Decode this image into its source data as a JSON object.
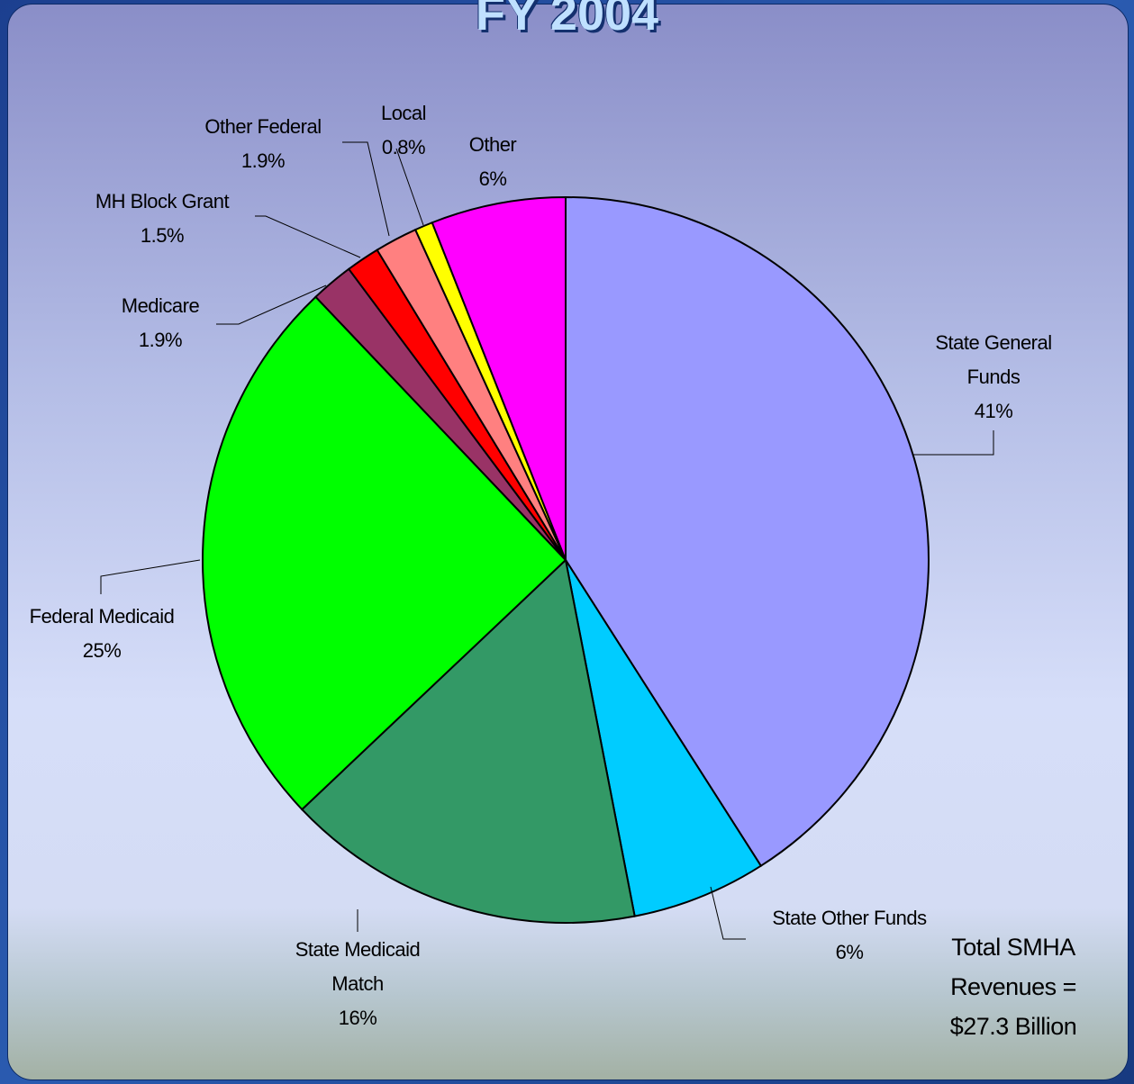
{
  "chart_data": {
    "type": "pie",
    "title": "FY 2004",
    "categories": [
      "State General Funds",
      "State Other Funds",
      "State Medicaid Match",
      "Federal Medicaid",
      "Medicare",
      "MH Block Grant",
      "Other Federal",
      "Local",
      "Other"
    ],
    "values": [
      41,
      6,
      16,
      25,
      1.9,
      1.5,
      1.9,
      0.8,
      6
    ],
    "value_labels": [
      "41%",
      "6%",
      "16%",
      "25%",
      "1.9%",
      "1.5%",
      "1.9%",
      "0.8%",
      "6%"
    ],
    "colors": [
      "#9999ff",
      "#00ccff",
      "#339966",
      "#00ff00",
      "#993366",
      "#ff0000",
      "#ff8080",
      "#ffff00",
      "#ff00ff"
    ],
    "annotation": "Total SMHA Revenues = $27.3 Billion"
  }
}
